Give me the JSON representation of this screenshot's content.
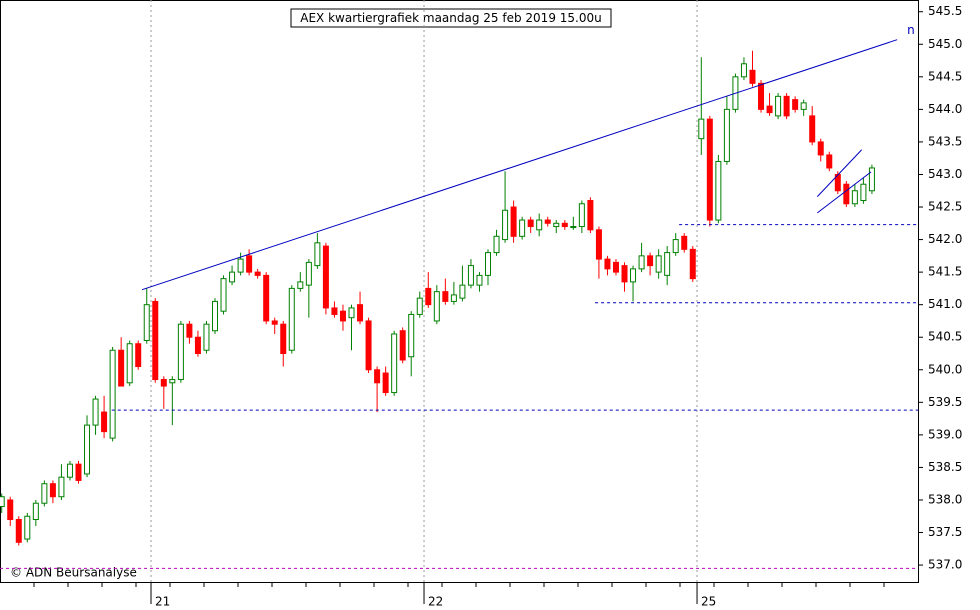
{
  "chart_data": {
    "type": "candlestick",
    "title": "AEX kwartiergrafiek maandag 25 feb 2019 15.00u",
    "credit": "© ADN Beursanalyse",
    "line_label": "n",
    "up_color": "#008000",
    "down_color": "#ff0000",
    "ylim": [
      536.74,
      545.68
    ],
    "yticks": [
      {
        "value": 537,
        "label": "537.0"
      },
      537.5,
      {
        "value": 538,
        "label": "538.0"
      },
      538.5,
      {
        "value": 539,
        "label": "539.0"
      },
      539.5,
      {
        "value": 540,
        "label": "540.0"
      },
      540.5,
      {
        "value": 541,
        "label": "541.0"
      },
      541.5,
      {
        "value": 542,
        "label": "542.0"
      },
      542.5,
      {
        "value": 543,
        "label": "543.0"
      },
      543.5,
      {
        "value": 544,
        "label": "544.0"
      },
      544.5,
      {
        "value": 545,
        "label": "545.0"
      },
      545.5
    ],
    "xlim": [
      -0.2,
      107.4
    ],
    "xticks": [
      {
        "value": 17.5,
        "label": "21"
      },
      {
        "value": 49.5,
        "label": "22"
      },
      {
        "value": 81.5,
        "label": "25"
      }
    ],
    "ohlc": [
      [
        537.9,
        538.1,
        537.8,
        538.05
      ],
      [
        538.0,
        538.05,
        537.6,
        537.7
      ],
      [
        537.7,
        537.75,
        537.3,
        537.35
      ],
      [
        537.4,
        537.8,
        537.35,
        537.75
      ],
      [
        537.7,
        538.0,
        537.6,
        537.95
      ],
      [
        537.95,
        538.3,
        537.9,
        538.25
      ],
      [
        538.25,
        538.3,
        537.95,
        538.05
      ],
      [
        538.05,
        538.55,
        538.0,
        538.35
      ],
      [
        538.35,
        538.6,
        538.3,
        538.55
      ],
      [
        538.55,
        538.6,
        538.25,
        538.3
      ],
      [
        538.4,
        539.3,
        538.35,
        539.15
      ],
      [
        539.15,
        539.6,
        539.0,
        539.55
      ],
      [
        539.35,
        539.6,
        538.95,
        539.05
      ],
      [
        538.95,
        540.35,
        538.9,
        540.3
      ],
      [
        540.3,
        540.5,
        539.75,
        539.75
      ],
      [
        539.8,
        540.45,
        539.75,
        540.4
      ],
      [
        540.4,
        540.45,
        540.0,
        540.05
      ],
      [
        540.45,
        541.25,
        540.4,
        541.0
      ],
      [
        541.05,
        541.1,
        539.8,
        539.85
      ],
      [
        539.85,
        539.9,
        539.4,
        539.75
      ],
      [
        539.8,
        539.9,
        539.15,
        539.85
      ],
      [
        539.85,
        540.75,
        539.8,
        540.7
      ],
      [
        540.7,
        540.75,
        540.4,
        540.5
      ],
      [
        540.5,
        540.6,
        540.2,
        540.25
      ],
      [
        540.3,
        540.75,
        540.25,
        540.7
      ],
      [
        540.6,
        541.1,
        540.55,
        541.05
      ],
      [
        540.9,
        541.45,
        540.85,
        541.4
      ],
      [
        541.35,
        541.6,
        541.3,
        541.5
      ],
      [
        541.5,
        541.8,
        541.45,
        541.7
      ],
      [
        541.75,
        541.85,
        541.45,
        541.5
      ],
      [
        541.5,
        541.55,
        541.4,
        541.45
      ],
      [
        541.45,
        541.5,
        540.7,
        540.75
      ],
      [
        540.75,
        540.8,
        540.55,
        540.7
      ],
      [
        540.7,
        540.75,
        540.05,
        540.25
      ],
      [
        540.3,
        541.3,
        540.25,
        541.25
      ],
      [
        541.25,
        541.5,
        541.2,
        541.35
      ],
      [
        541.3,
        541.7,
        540.8,
        541.65
      ],
      [
        541.6,
        542.1,
        541.55,
        541.95
      ],
      [
        541.9,
        541.95,
        540.85,
        540.95
      ],
      [
        540.95,
        541.05,
        540.8,
        540.85
      ],
      [
        540.9,
        541.0,
        540.6,
        540.75
      ],
      [
        540.8,
        541.0,
        540.3,
        540.95
      ],
      [
        541.0,
        541.2,
        540.7,
        540.75
      ],
      [
        540.75,
        540.8,
        539.95,
        540.0
      ],
      [
        540.0,
        540.05,
        539.35,
        539.8
      ],
      [
        539.95,
        540.05,
        539.6,
        539.65
      ],
      [
        539.65,
        540.6,
        539.6,
        540.55
      ],
      [
        540.6,
        540.65,
        540.1,
        540.15
      ],
      [
        540.2,
        540.9,
        539.9,
        540.85
      ],
      [
        540.85,
        541.2,
        540.8,
        541.1
      ],
      [
        541.25,
        541.5,
        540.95,
        541.0
      ],
      [
        540.75,
        541.3,
        540.7,
        541.2
      ],
      [
        541.2,
        541.4,
        541.0,
        541.05
      ],
      [
        541.05,
        541.35,
        541.0,
        541.15
      ],
      [
        541.1,
        541.6,
        541.05,
        541.3
      ],
      [
        541.3,
        541.7,
        541.25,
        541.6
      ],
      [
        541.3,
        541.5,
        541.2,
        541.45
      ],
      [
        541.45,
        541.85,
        541.3,
        541.8
      ],
      [
        541.8,
        542.15,
        541.75,
        542.05
      ],
      [
        542.0,
        543.05,
        541.95,
        542.45
      ],
      [
        542.5,
        542.6,
        541.95,
        542.05
      ],
      [
        542.05,
        542.35,
        542.0,
        542.3
      ],
      [
        542.3,
        542.35,
        542.1,
        542.2
      ],
      [
        542.15,
        542.4,
        542.05,
        542.3
      ],
      [
        542.3,
        542.35,
        542.2,
        542.25
      ],
      [
        542.2,
        542.3,
        542.1,
        542.25
      ],
      [
        542.25,
        542.3,
        542.15,
        542.2
      ],
      [
        542.2,
        542.35,
        542.15,
        542.2
      ],
      [
        542.2,
        542.6,
        542.1,
        542.55
      ],
      [
        542.6,
        542.65,
        542.1,
        542.15
      ],
      [
        542.15,
        542.2,
        541.4,
        541.7
      ],
      [
        541.7,
        541.75,
        541.45,
        541.55
      ],
      [
        541.65,
        541.7,
        541.45,
        541.5
      ],
      [
        541.6,
        541.65,
        541.2,
        541.35
      ],
      [
        541.35,
        541.6,
        541.05,
        541.55
      ],
      [
        541.55,
        541.95,
        541.5,
        541.75
      ],
      [
        541.75,
        541.8,
        541.45,
        541.6
      ],
      [
        541.5,
        541.85,
        541.4,
        541.75
      ],
      [
        541.45,
        541.9,
        541.3,
        541.8
      ],
      [
        541.8,
        542.1,
        541.75,
        542.0
      ],
      [
        542.05,
        542.1,
        541.8,
        541.85
      ],
      [
        541.85,
        541.9,
        541.35,
        541.4
      ],
      [
        543.55,
        544.8,
        543.3,
        543.85
      ],
      [
        543.85,
        543.9,
        542.2,
        542.3
      ],
      [
        542.3,
        543.3,
        542.25,
        543.2
      ],
      [
        543.2,
        544.2,
        543.15,
        544.0
      ],
      [
        544.0,
        544.55,
        543.95,
        544.5
      ],
      [
        544.5,
        544.8,
        544.45,
        544.7
      ],
      [
        544.6,
        544.9,
        544.35,
        544.4
      ],
      [
        544.4,
        544.45,
        543.95,
        544.0
      ],
      [
        544.05,
        544.25,
        543.9,
        543.95
      ],
      [
        543.9,
        544.25,
        543.85,
        544.2
      ],
      [
        544.2,
        544.25,
        543.85,
        543.9
      ],
      [
        544.15,
        544.2,
        543.95,
        544.0
      ],
      [
        544.0,
        544.15,
        543.9,
        544.1
      ],
      [
        543.9,
        544.05,
        543.45,
        543.5
      ],
      [
        543.5,
        543.55,
        543.2,
        543.3
      ],
      [
        543.3,
        543.35,
        543.05,
        543.1
      ],
      [
        543.0,
        543.05,
        542.7,
        542.75
      ],
      [
        542.85,
        542.9,
        542.5,
        542.55
      ],
      [
        542.55,
        542.85,
        542.5,
        542.75
      ],
      [
        542.6,
        542.95,
        542.55,
        542.85
      ],
      [
        542.75,
        543.15,
        542.7,
        543.1
      ]
    ],
    "lines": [
      {
        "color": "#0000c0",
        "dash": false,
        "x": [
          16.45,
          104.95
        ],
        "y": [
          541.23,
          545.07
        ]
      },
      {
        "color": "#0000c0",
        "dash": false,
        "x": [
          95.6,
          100.8
        ],
        "y": [
          542.66,
          543.38
        ]
      },
      {
        "color": "#0000c0",
        "dash": false,
        "x": [
          95.6,
          101.9
        ],
        "y": [
          542.41,
          543.04
        ]
      },
      {
        "color": "#0000c0",
        "dash": true,
        "x": [
          12.9,
          107.4
        ],
        "y": [
          539.38,
          539.38
        ]
      },
      {
        "color": "#0000c0",
        "dash": true,
        "x": [
          69.55,
          107.4
        ],
        "y": [
          541.03,
          541.03
        ]
      },
      {
        "color": "#0000c0",
        "dash": true,
        "x": [
          79.4,
          107.4
        ],
        "y": [
          542.23,
          542.23
        ]
      },
      {
        "color": "#c000c0",
        "dash": true,
        "x": [
          -0.2,
          107.4
        ],
        "y": [
          536.95,
          536.95
        ]
      }
    ]
  }
}
